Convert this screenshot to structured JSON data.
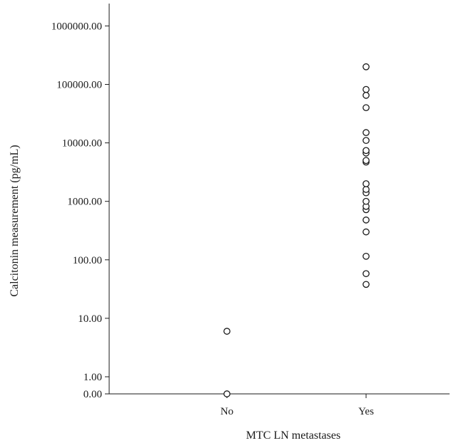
{
  "chart_data": {
    "type": "scatter",
    "xlabel": "MTC LN metastases",
    "ylabel": "Calcitonin measurement (pg/mL)",
    "y_scale": "log",
    "categories": [
      "No",
      "Yes"
    ],
    "y_ticks": [
      {
        "value": 0,
        "label": "0.00"
      },
      {
        "value": 1,
        "label": "1.00"
      },
      {
        "value": 10,
        "label": "10.00"
      },
      {
        "value": 100,
        "label": "100.00"
      },
      {
        "value": 1000,
        "label": "1000.00"
      },
      {
        "value": 10000,
        "label": "10000.00"
      },
      {
        "value": 100000,
        "label": "100000.00"
      },
      {
        "value": 1000000,
        "label": "1000000.00"
      }
    ],
    "grid": false,
    "points": {
      "No": [
        0,
        6
      ],
      "Yes": [
        38,
        58,
        115,
        300,
        480,
        720,
        820,
        1000,
        1400,
        1600,
        2000,
        4700,
        5000,
        6700,
        7400,
        11000,
        15000,
        40000,
        65000,
        82000,
        200000
      ]
    }
  }
}
